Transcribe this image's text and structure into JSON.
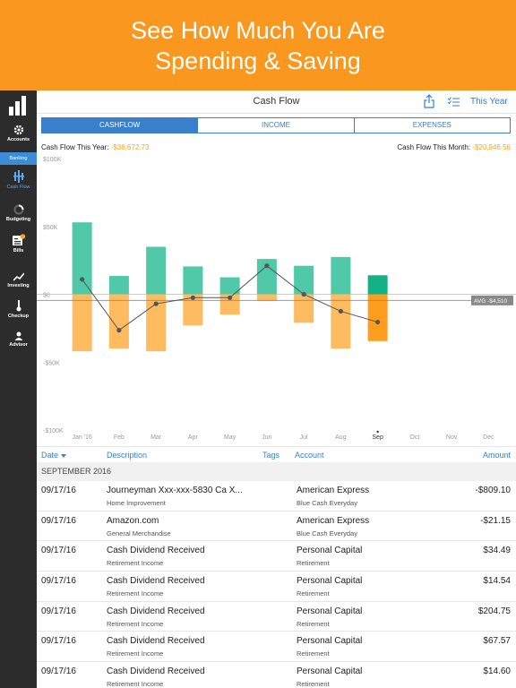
{
  "banner": {
    "line1": "See How Much You Are",
    "line2": "Spending & Saving"
  },
  "sidebar": {
    "items": [
      {
        "label": "Accounts",
        "icon": "gear-icon"
      },
      {
        "label": "Banking",
        "icon": ""
      },
      {
        "label": "Cash Flow",
        "icon": "cashflow-icon"
      },
      {
        "label": "Budgeting",
        "icon": "budget-icon"
      },
      {
        "label": "Bills",
        "icon": "bills-icon"
      },
      {
        "label": "Investing",
        "icon": "investing-icon"
      },
      {
        "label": "Checkup",
        "icon": "thermometer-icon"
      },
      {
        "label": "Advisor",
        "icon": "person-icon"
      }
    ]
  },
  "header": {
    "title": "Cash Flow",
    "period": "This Year"
  },
  "tabs": [
    "CASHFLOW",
    "INCOME",
    "EXPENSES"
  ],
  "summary": {
    "year_label": "Cash Flow This Year:",
    "year_value": "-$38,672.73",
    "month_label": "Cash Flow This Month:",
    "month_value": "-$20,946.56"
  },
  "chart_data": {
    "type": "bar",
    "categories": [
      "Jan '16",
      "Feb",
      "Mar",
      "Apr",
      "May",
      "Jun",
      "Jul",
      "Aug",
      "Sep",
      "Oct",
      "Nov",
      "Dec"
    ],
    "y_tick_labels": [
      "$100K",
      "$50K",
      "$0",
      "-$50K",
      "-$100K"
    ],
    "y_ticks": [
      100000,
      50000,
      0,
      -50000,
      -100000
    ],
    "ylim": [
      -100000,
      100000
    ],
    "series": [
      {
        "values": [
          53000,
          13500,
          35000,
          20500,
          12500,
          26000,
          21000,
          27500,
          14000,
          null,
          null,
          null
        ]
      },
      {
        "values": [
          -42000,
          -40000,
          -42000,
          -23000,
          -15000,
          -5000,
          -21000,
          -40000,
          -34500,
          null,
          null,
          null
        ]
      },
      {
        "values": [
          11000,
          -26500,
          -7000,
          -2500,
          -2500,
          21000,
          0,
          -12500,
          -20500,
          null,
          null,
          null
        ]
      }
    ],
    "average_label": "AVG -$4,510",
    "average_value": -4510,
    "highlight_index": 8,
    "colors": {
      "income": "#4fc9a8",
      "income_current": "#12b187",
      "expense": "#ffbb60",
      "expense_current": "#ff9e1e",
      "line": "#555555",
      "axis_text": "#9a9a9a"
    }
  },
  "table": {
    "headers": {
      "date": "Date",
      "description": "Description",
      "tags": "Tags",
      "account": "Account",
      "amount": "Amount"
    },
    "section": "SEPTEMBER 2016",
    "rows": [
      {
        "date": "09/17/16",
        "description": "Journeyman Xxx-xxx-5830 Ca X...",
        "category": "Home Improvement",
        "account": "American Express",
        "account_sub": "Blue Cash Everyday",
        "amount": "-$809.10"
      },
      {
        "date": "09/17/16",
        "description": "Amazon.com",
        "category": "General Merchandise",
        "account": "American Express",
        "account_sub": "Blue Cash Everyday",
        "amount": "-$21.15"
      },
      {
        "date": "09/17/16",
        "description": "Cash Dividend Received",
        "category": "Retirement Income",
        "account": "Personal Capital",
        "account_sub": "Retirement",
        "amount": "$34.49"
      },
      {
        "date": "09/17/16",
        "description": "Cash Dividend Received",
        "category": "Retirement Income",
        "account": "Personal Capital",
        "account_sub": "Retirement",
        "amount": "$14.54"
      },
      {
        "date": "09/17/16",
        "description": "Cash Dividend Received",
        "category": "Retirement Income",
        "account": "Personal Capital",
        "account_sub": "Retirement",
        "amount": "$204.75"
      },
      {
        "date": "09/17/16",
        "description": "Cash Dividend Received",
        "category": "Retirement Income",
        "account": "Personal Capital",
        "account_sub": "Retirement",
        "amount": "$67.57"
      },
      {
        "date": "09/17/16",
        "description": "Cash Dividend Received",
        "category": "Retirement Income",
        "account": "Personal Capital",
        "account_sub": "Retirement",
        "amount": "$14.60"
      }
    ]
  }
}
